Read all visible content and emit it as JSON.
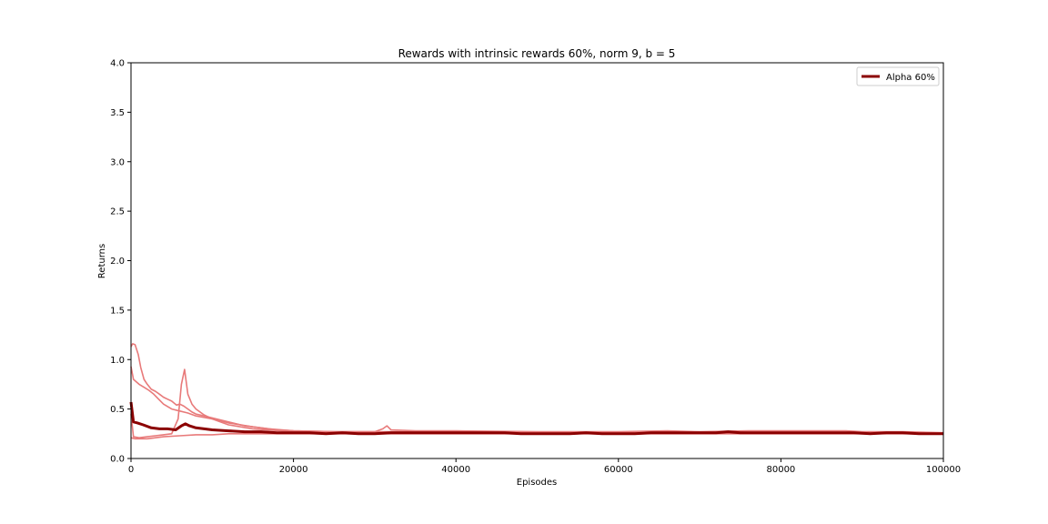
{
  "chart_data": {
    "type": "line",
    "title": "Rewards with intrinsic rewards 60%, norm 9, b = 5",
    "xlabel": "Episodes",
    "ylabel": "Returns",
    "xlim": [
      0,
      100000
    ],
    "ylim": [
      0.0,
      4.0
    ],
    "xticks": [
      0,
      20000,
      40000,
      60000,
      80000,
      100000
    ],
    "xtick_labels": [
      "0",
      "20000",
      "40000",
      "60000",
      "80000",
      "100000"
    ],
    "yticks": [
      0.0,
      0.5,
      1.0,
      1.5,
      2.0,
      2.5,
      3.0,
      3.5,
      4.0
    ],
    "ytick_labels": [
      "0.0",
      "0.5",
      "1.0",
      "1.5",
      "2.0",
      "2.5",
      "3.0",
      "3.5",
      "4.0"
    ],
    "grid": false,
    "legend": {
      "position": "top-right",
      "entries": [
        "Alpha 60%"
      ]
    },
    "colors": {
      "mean": "#8b0000",
      "runs": "#e87a7a"
    },
    "series": [
      {
        "name": "Alpha 60%",
        "role": "mean",
        "x": [
          0,
          300,
          800,
          1500,
          2500,
          3500,
          4500,
          5500,
          6200,
          6700,
          7200,
          8000,
          9000,
          10000,
          12000,
          14000,
          16000,
          18000,
          20000,
          22000,
          24000,
          26000,
          28000,
          30000,
          32000,
          34000,
          36000,
          38000,
          40000,
          42000,
          44000,
          46000,
          48000,
          50000,
          52000,
          54000,
          56000,
          58000,
          60000,
          62000,
          64000,
          66000,
          68000,
          70000,
          72000,
          73500,
          75000,
          77000,
          79000,
          81000,
          83000,
          85000,
          87000,
          89000,
          91000,
          93000,
          95000,
          97000,
          99000,
          100000
        ],
        "values": [
          0.57,
          0.37,
          0.36,
          0.34,
          0.31,
          0.3,
          0.3,
          0.29,
          0.33,
          0.35,
          0.33,
          0.31,
          0.3,
          0.29,
          0.28,
          0.27,
          0.27,
          0.26,
          0.26,
          0.26,
          0.25,
          0.26,
          0.25,
          0.25,
          0.26,
          0.26,
          0.26,
          0.26,
          0.26,
          0.26,
          0.26,
          0.26,
          0.25,
          0.25,
          0.25,
          0.25,
          0.26,
          0.25,
          0.25,
          0.25,
          0.26,
          0.26,
          0.26,
          0.26,
          0.26,
          0.27,
          0.26,
          0.26,
          0.26,
          0.26,
          0.26,
          0.26,
          0.26,
          0.26,
          0.25,
          0.26,
          0.26,
          0.25,
          0.25,
          0.25
        ]
      },
      {
        "role": "run",
        "x": [
          0,
          300,
          1000,
          1600,
          2200,
          2800,
          3400,
          4000,
          5000,
          6000,
          7000,
          8000,
          10000,
          12000,
          15000,
          18000,
          20000,
          25000,
          30000,
          31000,
          31500,
          32000,
          35000,
          40000,
          50000,
          60000,
          66000,
          70000,
          76000,
          80000,
          88000,
          90000,
          95000,
          100000
        ],
        "values": [
          0.93,
          0.8,
          0.75,
          0.72,
          0.69,
          0.65,
          0.6,
          0.55,
          0.5,
          0.48,
          0.46,
          0.43,
          0.4,
          0.36,
          0.32,
          0.29,
          0.28,
          0.27,
          0.27,
          0.3,
          0.33,
          0.29,
          0.28,
          0.28,
          0.27,
          0.27,
          0.28,
          0.27,
          0.28,
          0.28,
          0.28,
          0.27,
          0.27,
          0.26
        ]
      },
      {
        "role": "run",
        "x": [
          0,
          200,
          500,
          900,
          1200,
          1600,
          2000,
          2500,
          3000,
          3500,
          4000,
          4500,
          5000,
          5600,
          6000,
          6500,
          7000,
          7500,
          8000,
          9000,
          10000,
          12000,
          14000,
          17000,
          20000,
          25000,
          30000,
          40000,
          50000,
          60000,
          70000,
          80000,
          90000,
          100000
        ],
        "values": [
          1.13,
          1.16,
          1.15,
          1.05,
          0.92,
          0.8,
          0.75,
          0.7,
          0.68,
          0.65,
          0.62,
          0.6,
          0.58,
          0.54,
          0.55,
          0.53,
          0.5,
          0.47,
          0.45,
          0.43,
          0.41,
          0.37,
          0.33,
          0.3,
          0.28,
          0.27,
          0.27,
          0.27,
          0.26,
          0.26,
          0.26,
          0.26,
          0.26,
          0.25
        ]
      },
      {
        "role": "run",
        "x": [
          0,
          300,
          1000,
          2000,
          3000,
          4000,
          5000,
          5800,
          6200,
          6600,
          7000,
          7500,
          8000,
          9000,
          10000,
          12000,
          15000,
          20000,
          25000,
          30000,
          40000,
          50000,
          60000,
          70000,
          80000,
          90000,
          100000
        ],
        "values": [
          0.45,
          0.22,
          0.21,
          0.22,
          0.23,
          0.24,
          0.25,
          0.4,
          0.75,
          0.9,
          0.65,
          0.55,
          0.5,
          0.44,
          0.4,
          0.34,
          0.3,
          0.27,
          0.26,
          0.26,
          0.26,
          0.26,
          0.25,
          0.26,
          0.26,
          0.26,
          0.25
        ]
      },
      {
        "role": "run",
        "x": [
          0,
          500,
          1000,
          2000,
          4000,
          6000,
          8000,
          10000,
          12000,
          14000,
          16000,
          18000,
          20000,
          25000,
          30000,
          40000,
          50000,
          60000,
          70000,
          80000,
          90000,
          100000
        ],
        "values": [
          0.21,
          0.2,
          0.2,
          0.2,
          0.22,
          0.23,
          0.24,
          0.24,
          0.25,
          0.25,
          0.25,
          0.25,
          0.25,
          0.25,
          0.25,
          0.25,
          0.25,
          0.25,
          0.25,
          0.25,
          0.25,
          0.25
        ]
      }
    ]
  }
}
